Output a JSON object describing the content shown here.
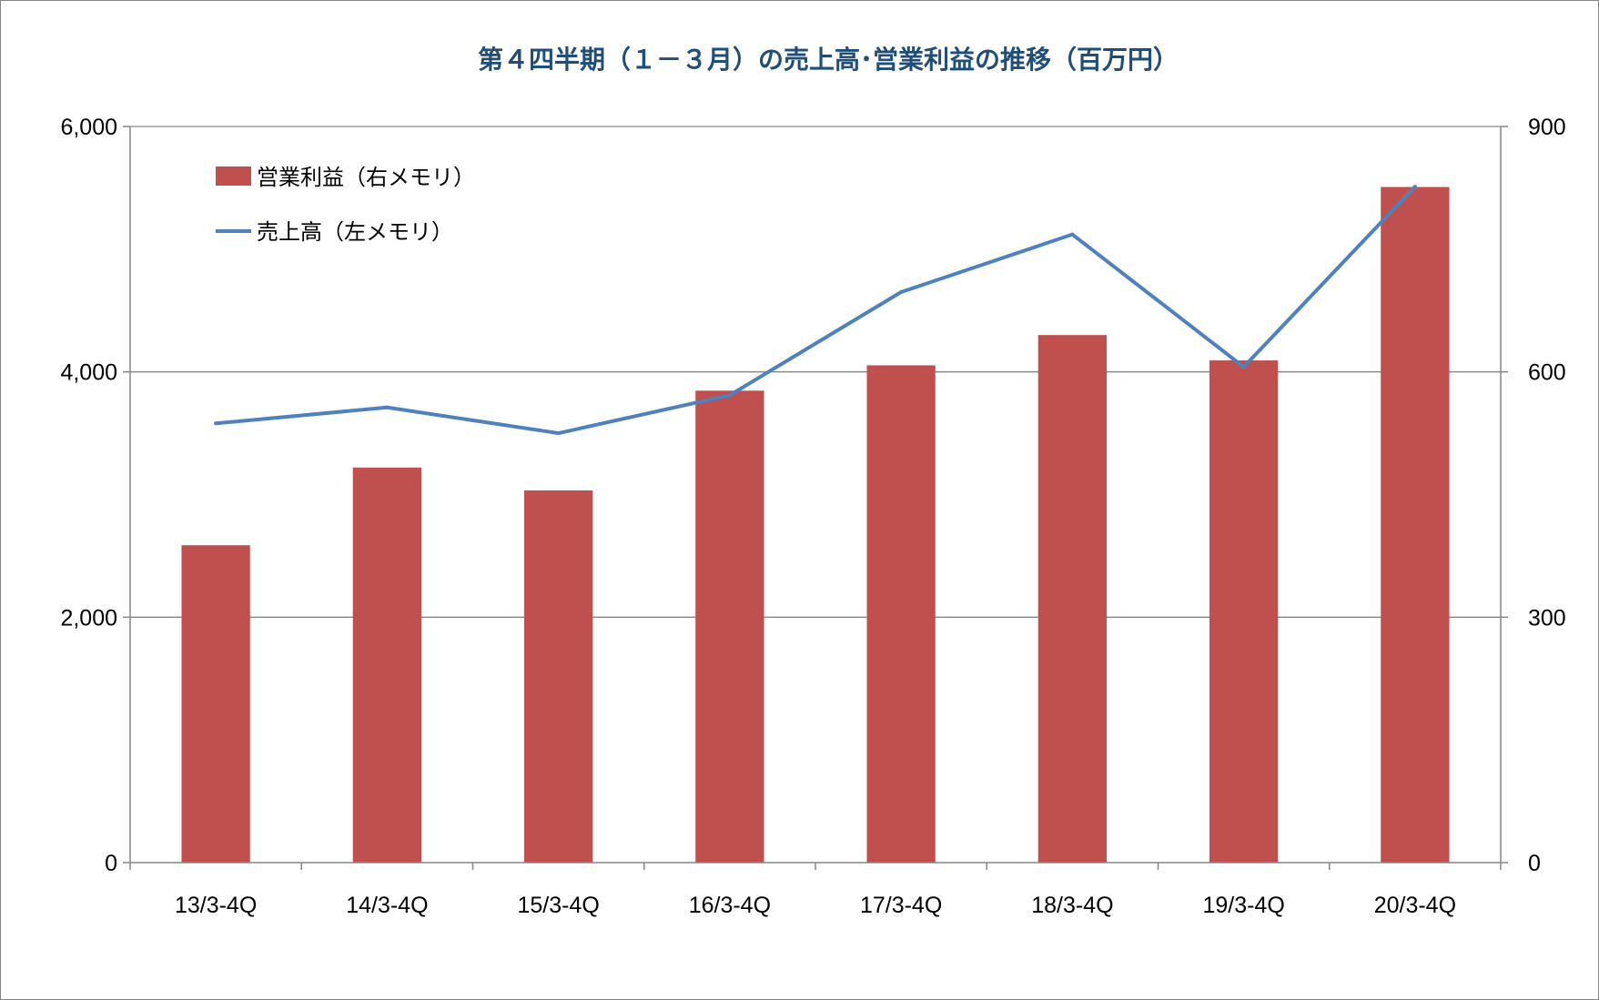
{
  "chart_data": {
    "type": "bar",
    "title": "第４四半期（１－３月）の売上高･営業利益の推移（百万円）",
    "categories": [
      "13/3-4Q",
      "14/3-4Q",
      "15/3-4Q",
      "16/3-4Q",
      "17/3-4Q",
      "18/3-4Q",
      "19/3-4Q",
      "20/3-4Q"
    ],
    "series": [
      {
        "name": "営業利益（右メモリ）",
        "type": "bar",
        "axis": "right",
        "color": "#c0504d",
        "values": [
          388,
          483,
          455,
          577,
          608,
          645,
          614,
          826
        ]
      },
      {
        "name": "売上高（左メモリ）",
        "type": "line",
        "axis": "left",
        "color": "#4f81bd",
        "values": [
          3580,
          3710,
          3500,
          3810,
          4650,
          5120,
          4040,
          5510
        ]
      }
    ],
    "y_left": {
      "ylim": [
        0,
        6000
      ],
      "ticks": [
        0,
        2000,
        4000,
        6000
      ],
      "tick_labels": [
        "0",
        "2,000",
        "4,000",
        "6,000"
      ]
    },
    "y_right": {
      "ylim": [
        0,
        900
      ],
      "ticks": [
        0,
        300,
        600,
        900
      ],
      "tick_labels": [
        "0",
        "300",
        "600",
        "900"
      ]
    },
    "grid": true,
    "legend_position": "top-left"
  }
}
